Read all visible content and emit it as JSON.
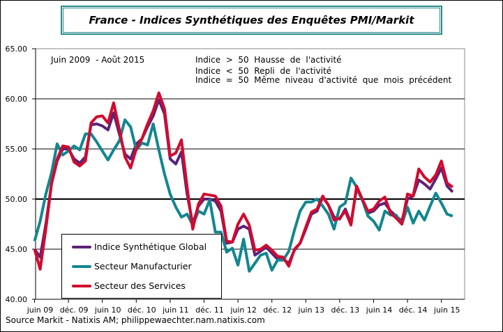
{
  "title": "France - Indices Synthétiques des Enquêtes PMI/Markit",
  "source": "Source Markit - Natixis AM; philippewaechter.nam.natixis.com",
  "chart_data": {
    "type": "line",
    "title": "France - Indices Synthétiques des Enquêtes PMI/Markit",
    "annotations": {
      "period": "Juin 2009  - Août 2015",
      "notes": [
        "Indice  >  50  Hausse  de  l'activité",
        "Indice  <  50  Repli  de  l'activité",
        "Indice  =  50  Même  niveau  d'activité  que  mois  précédent"
      ]
    },
    "ylim": [
      40,
      65
    ],
    "y_ticks": [
      "40.00",
      "45.00",
      "50.00",
      "55.00",
      "60.00",
      "65.00"
    ],
    "x_tick_labels": [
      "juin 09",
      "déc. 09",
      "juin 10",
      "déc. 10",
      "juin 11",
      "déc. 11",
      "juin 12",
      "déc. 12",
      "juin 13",
      "déc. 13",
      "juin 14",
      "déc. 14",
      "juin 15"
    ],
    "x_start": "2009-06",
    "x_end": "2015-08",
    "grid": true,
    "legend_position": "bottom-left",
    "series": [
      {
        "name": "Indice Synthétique Global",
        "color": "#5b2378",
        "values": [
          45.0,
          44.2,
          47.5,
          51.5,
          53.8,
          55.0,
          55.0,
          54.0,
          53.6,
          54.2,
          57.4,
          57.5,
          57.3,
          56.9,
          58.6,
          56.5,
          54.5,
          54.0,
          55.5,
          56.0,
          57.2,
          58.3,
          59.9,
          58.5,
          54.0,
          53.5,
          54.7,
          50.5,
          47.5,
          49.3,
          50.0,
          50.0,
          49.8,
          48.8,
          45.6,
          45.7,
          47.0,
          47.3,
          47.0,
          44.4,
          44.8,
          45.2,
          44.6,
          44.0,
          44.0,
          43.6,
          44.9,
          45.6,
          47.0,
          48.5,
          48.8,
          50.2,
          49.4,
          48.2,
          48.0,
          49.0,
          47.6,
          51.1,
          49.9,
          48.6,
          48.8,
          49.4,
          49.6,
          48.8,
          48.3,
          47.8,
          50.0,
          50.3,
          51.9,
          51.5,
          51.0,
          52.0,
          53.1,
          51.3,
          50.7
        ]
      },
      {
        "name": "Secteur Manufacturier",
        "color": "#12868f",
        "values": [
          45.8,
          47.8,
          50.5,
          52.6,
          55.5,
          54.4,
          54.8,
          55.3,
          54.9,
          56.5,
          56.5,
          55.7,
          54.8,
          53.9,
          54.9,
          55.8,
          57.9,
          57.2,
          54.9,
          55.6,
          55.4,
          57.5,
          54.9,
          52.5,
          50.5,
          49.2,
          48.2,
          48.5,
          47.4,
          48.8,
          48.5,
          49.9,
          46.7,
          46.7,
          44.7,
          45.1,
          43.4,
          46.0,
          42.8,
          43.6,
          44.4,
          44.6,
          42.9,
          43.9,
          43.9,
          44.8,
          46.9,
          48.8,
          49.7,
          49.7,
          50.0,
          49.3,
          48.5,
          47.0,
          49.2,
          49.6,
          52.1,
          51.2,
          49.9,
          48.3,
          47.8,
          46.9,
          48.8,
          48.4,
          48.4,
          47.5,
          49.2,
          47.6,
          48.8,
          47.9,
          49.3,
          50.6,
          49.6,
          48.5,
          48.3
        ]
      },
      {
        "name": "Secteur des Services",
        "color": "#d20a2e",
        "values": [
          45.0,
          43.0,
          47.0,
          51.5,
          54.0,
          55.3,
          55.2,
          53.7,
          53.3,
          53.8,
          57.6,
          58.2,
          58.3,
          57.6,
          59.6,
          57.0,
          54.2,
          53.1,
          55.0,
          56.0,
          57.5,
          58.8,
          60.6,
          59.0,
          54.3,
          54.6,
          55.9,
          51.2,
          47.0,
          49.5,
          50.5,
          50.4,
          50.3,
          49.3,
          45.8,
          45.7,
          47.5,
          48.5,
          47.4,
          44.9,
          45.0,
          45.4,
          44.9,
          44.3,
          44.2,
          43.3,
          45.0,
          45.6,
          47.2,
          48.7,
          49.0,
          50.3,
          49.4,
          47.9,
          48.1,
          48.8,
          47.4,
          51.3,
          50.0,
          48.8,
          49.0,
          49.8,
          50.2,
          48.6,
          48.1,
          47.5,
          50.5,
          50.3,
          53.0,
          52.2,
          51.7,
          52.4,
          53.8,
          51.6,
          51.2
        ]
      }
    ]
  }
}
